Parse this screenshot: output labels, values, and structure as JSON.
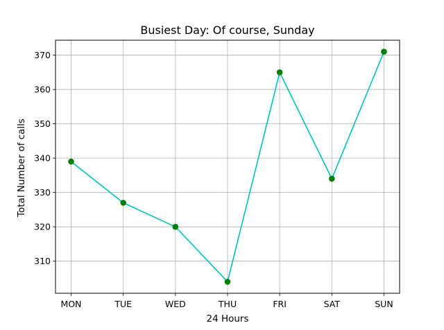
{
  "chart_data": {
    "type": "line",
    "title": "Busiest Day: Of course, Sunday",
    "xlabel": "24 Hours",
    "ylabel": "Total Number of calls",
    "categories": [
      "MON",
      "TUE",
      "WED",
      "THU",
      "FRI",
      "SAT",
      "SUN"
    ],
    "series": [
      {
        "values": [
          339,
          327,
          320,
          304,
          365,
          334,
          371
        ]
      }
    ],
    "ylim": [
      300.65,
      374.35
    ],
    "yticks": [
      310,
      320,
      330,
      340,
      350,
      360,
      370
    ],
    "grid": true,
    "line_color": "#00bfbf",
    "marker_color": "#008000"
  }
}
